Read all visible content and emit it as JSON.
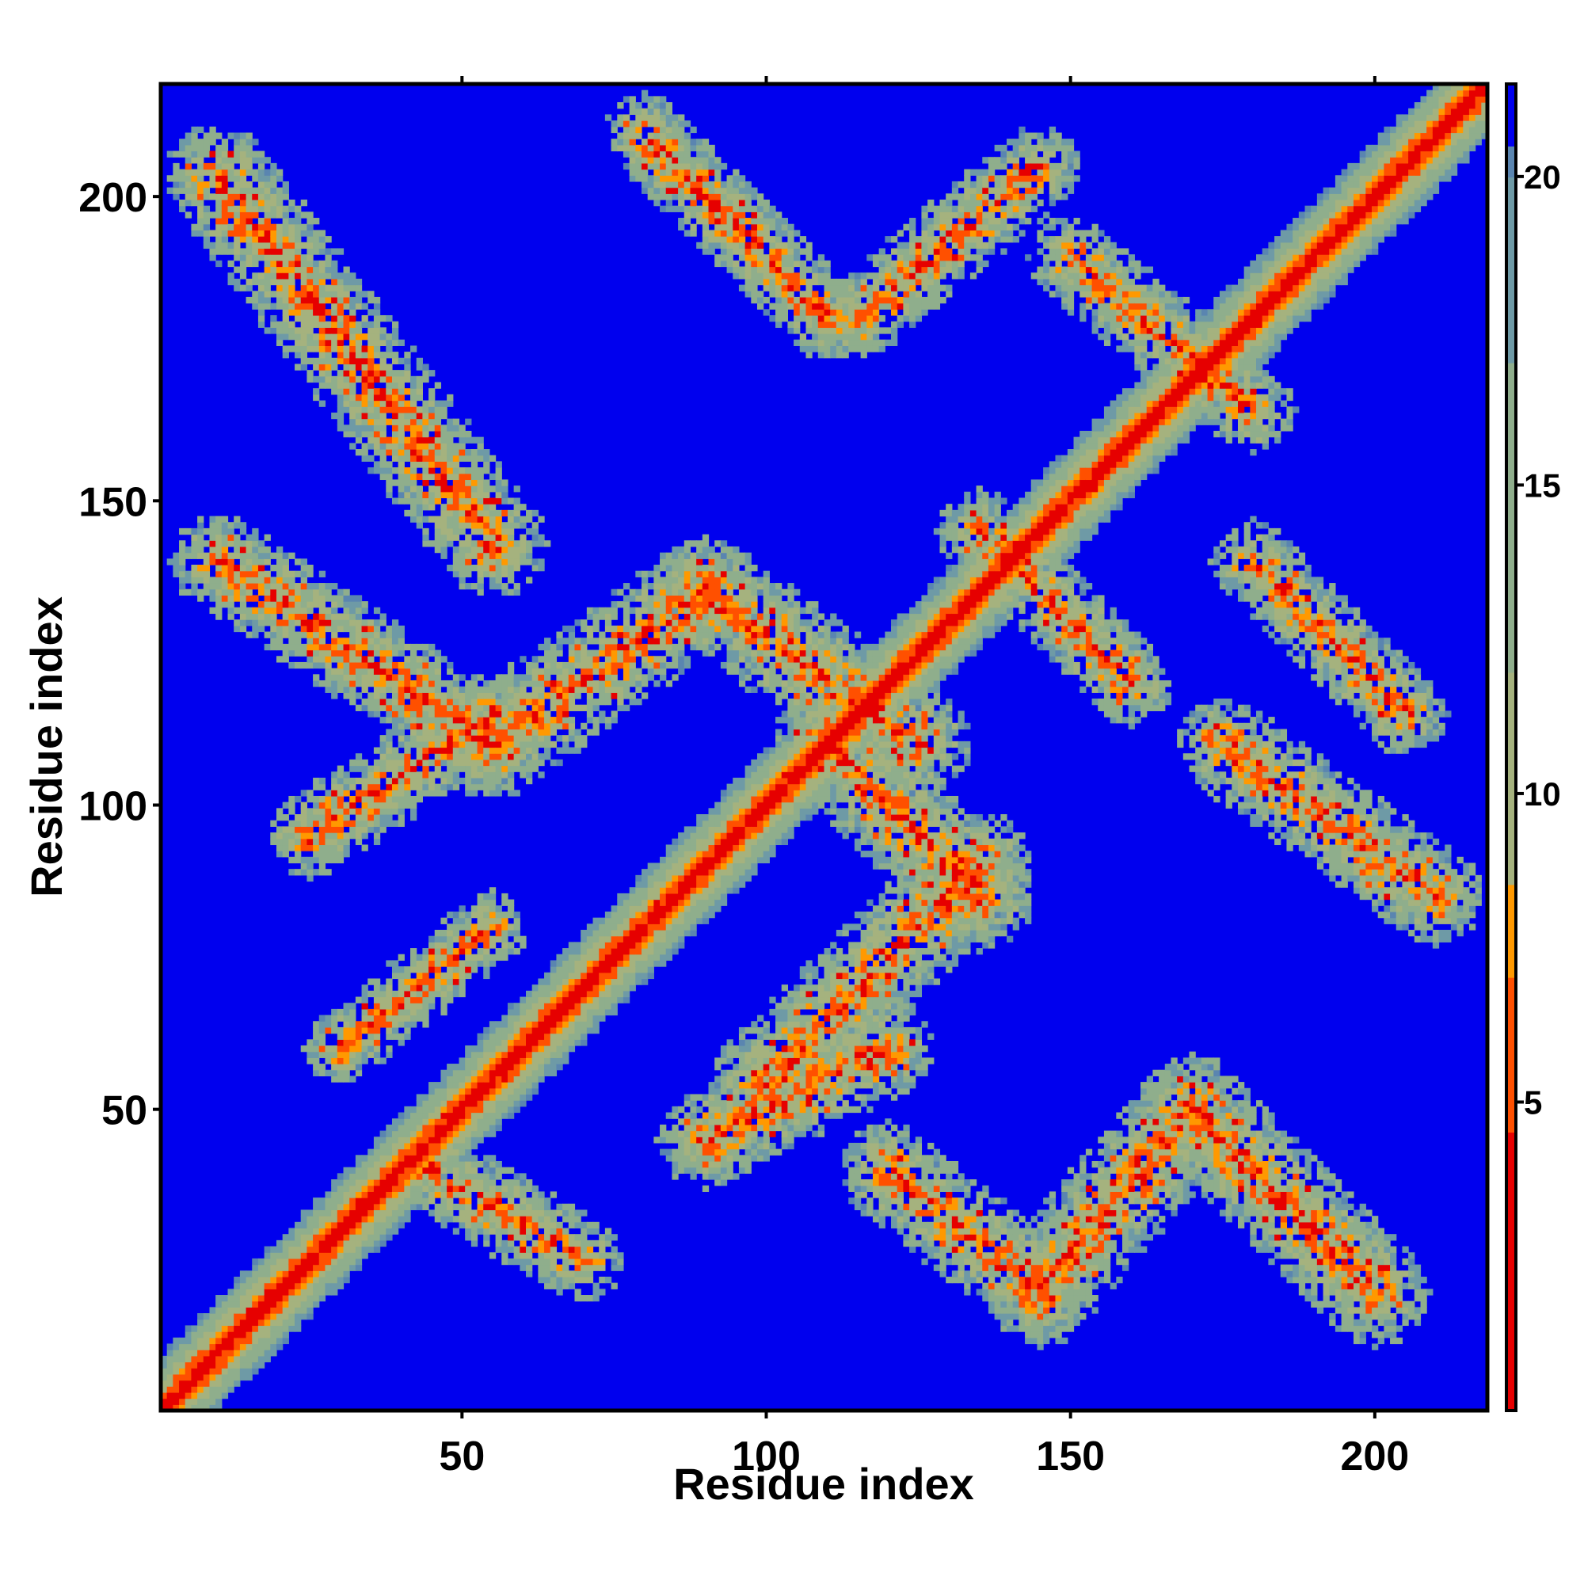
{
  "chart_data": {
    "type": "heatmap",
    "title": "",
    "xlabel": "Residue index",
    "ylabel": "Residue index",
    "xlim": [
      1,
      218
    ],
    "ylim": [
      1,
      218
    ],
    "n_residues": 218,
    "x_ticks": [
      50,
      100,
      150,
      200
    ],
    "y_ticks": [
      50,
      100,
      150,
      200
    ],
    "colorbar": {
      "min": 0,
      "max": 21.5,
      "ticks": [
        5,
        10,
        15,
        20
      ],
      "colors": [
        {
          "value": 0,
          "color": "#e60000"
        },
        {
          "value": 4.5,
          "color": "#ff5000"
        },
        {
          "value": 7,
          "color": "#ff9900"
        },
        {
          "value": 8.5,
          "color": "#ffaa00"
        },
        {
          "value": 8.5,
          "color": "#a5b27e"
        },
        {
          "value": 12,
          "color": "#8fae8c"
        },
        {
          "value": 17,
          "color": "#6e9aa6"
        },
        {
          "value": 20,
          "color": "#5a85b0"
        },
        {
          "value": 20.5,
          "color": "#0000ee"
        },
        {
          "value": 21.5,
          "color": "#0000ee"
        }
      ]
    },
    "contact_bands": [
      {
        "start": [
          10,
          203
        ],
        "end": [
          55,
          143
        ],
        "width": 9,
        "strength": 1.0
      },
      {
        "start": [
          10,
          140
        ],
        "end": [
          55,
          110
        ],
        "width": 8,
        "strength": 0.9
      },
      {
        "start": [
          55,
          110
        ],
        "end": [
          90,
          135
        ],
        "width": 9,
        "strength": 1.0
      },
      {
        "start": [
          90,
          135
        ],
        "end": [
          125,
          110
        ],
        "width": 9,
        "strength": 1.0
      },
      {
        "start": [
          25,
          95
        ],
        "end": [
          55,
          115
        ],
        "width": 7,
        "strength": 0.7
      },
      {
        "start": [
          30,
          60
        ],
        "end": [
          55,
          80
        ],
        "width": 6,
        "strength": 0.5
      },
      {
        "start": [
          80,
          210
        ],
        "end": [
          110,
          180
        ],
        "width": 7,
        "strength": 0.9
      },
      {
        "start": [
          115,
          180
        ],
        "end": [
          145,
          205
        ],
        "width": 7,
        "strength": 0.7
      },
      {
        "start": [
          110,
          110
        ],
        "end": [
          135,
          85
        ],
        "width": 9,
        "strength": 0.9
      },
      {
        "start": [
          100,
          55
        ],
        "end": [
          135,
          90
        ],
        "width": 9,
        "strength": 1.0
      },
      {
        "start": [
          45,
          40
        ],
        "end": [
          70,
          25
        ],
        "width": 7,
        "strength": 0.6
      },
      {
        "start": [
          90,
          45
        ],
        "end": [
          120,
          60
        ],
        "width": 8,
        "strength": 0.8
      },
      {
        "start": [
          120,
          40
        ],
        "end": [
          145,
          20
        ],
        "width": 8,
        "strength": 0.9
      },
      {
        "start": [
          145,
          20
        ],
        "end": [
          170,
          50
        ],
        "width": 9,
        "strength": 1.0
      },
      {
        "start": [
          170,
          50
        ],
        "end": [
          200,
          20
        ],
        "width": 9,
        "strength": 1.0
      },
      {
        "start": [
          180,
          140
        ],
        "end": [
          205,
          115
        ],
        "width": 7,
        "strength": 0.7
      },
      {
        "start": [
          175,
          110
        ],
        "end": [
          210,
          85
        ],
        "width": 8,
        "strength": 0.9
      },
      {
        "start": [
          135,
          145
        ],
        "end": [
          160,
          120
        ],
        "width": 7,
        "strength": 0.7
      },
      {
        "start": [
          150,
          190
        ],
        "end": [
          180,
          165
        ],
        "width": 7,
        "strength": 0.8
      }
    ]
  }
}
